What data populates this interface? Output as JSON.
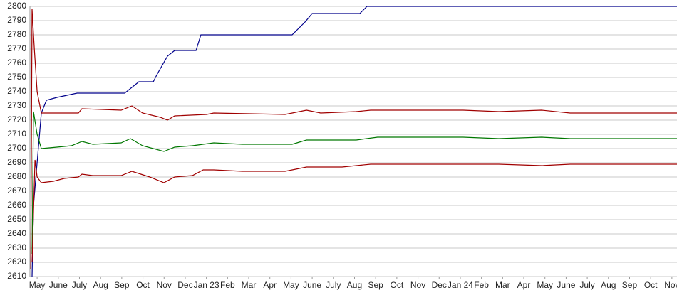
{
  "chart_data": {
    "type": "line",
    "xlim": [
      -0.34,
      30.24
    ],
    "ylim": [
      2610,
      2800
    ],
    "yticks": [
      2610,
      2620,
      2630,
      2640,
      2650,
      2660,
      2670,
      2680,
      2690,
      2700,
      2710,
      2720,
      2730,
      2740,
      2750,
      2760,
      2770,
      2780,
      2790,
      2800
    ],
    "xticks": [
      {
        "value": 0,
        "label": "May"
      },
      {
        "value": 1,
        "label": "June"
      },
      {
        "value": 2,
        "label": "July"
      },
      {
        "value": 3,
        "label": "Aug"
      },
      {
        "value": 4,
        "label": "Sep"
      },
      {
        "value": 5,
        "label": "Oct"
      },
      {
        "value": 6,
        "label": "Nov"
      },
      {
        "value": 7,
        "label": "Dec"
      },
      {
        "value": 8,
        "label": "Jan 23"
      },
      {
        "value": 9,
        "label": "Feb"
      },
      {
        "value": 10,
        "label": "Mar"
      },
      {
        "value": 11,
        "label": "Apr"
      },
      {
        "value": 12,
        "label": "May"
      },
      {
        "value": 13,
        "label": "June"
      },
      {
        "value": 14,
        "label": "July"
      },
      {
        "value": 15,
        "label": "Aug"
      },
      {
        "value": 16,
        "label": "Sep"
      },
      {
        "value": 17,
        "label": "Oct"
      },
      {
        "value": 18,
        "label": "Nov"
      },
      {
        "value": 19,
        "label": "Dec"
      },
      {
        "value": 20,
        "label": "Jan 24"
      },
      {
        "value": 21,
        "label": "Feb"
      },
      {
        "value": 22,
        "label": "Mar"
      },
      {
        "value": 23,
        "label": "Apr"
      },
      {
        "value": 24,
        "label": "May"
      },
      {
        "value": 25,
        "label": "June"
      },
      {
        "value": 26,
        "label": "July"
      },
      {
        "value": 27,
        "label": "Aug"
      },
      {
        "value": 28,
        "label": "Sep"
      },
      {
        "value": 29,
        "label": "Oct"
      },
      {
        "value": 30,
        "label": "Nov"
      }
    ],
    "grid": true,
    "series": [
      {
        "color": "#00008b",
        "x": [
          -0.24,
          -0.17,
          0.2,
          0.44,
          0.94,
          1.89,
          4.14,
          4.81,
          5.49,
          5.66,
          6.16,
          6.5,
          7.51,
          7.74,
          12.05,
          12.66,
          13.0,
          15.25,
          15.59,
          30.24
        ],
        "values": [
          2610,
          2660,
          2725,
          2734,
          2736,
          2739,
          2739,
          2747,
          2747,
          2752,
          2765,
          2769,
          2769,
          2780,
          2780,
          2789,
          2795,
          2795,
          2800,
          2800
        ]
      },
      {
        "color": "#a00000",
        "x": [
          -0.3,
          -0.24,
          -0.13,
          0,
          0.2,
          1.95,
          2.12,
          3.97,
          4.48,
          4.98,
          5.82,
          6.16,
          6.5,
          8.01,
          8.35,
          11.72,
          12.73,
          13.4,
          15.08,
          15.76,
          20.13,
          21.82,
          23.84,
          25.19,
          30.24
        ],
        "values": [
          2615,
          2798,
          2770,
          2740,
          2725,
          2725,
          2728,
          2727,
          2730,
          2725,
          2722,
          2720,
          2723,
          2724,
          2725,
          2724,
          2727,
          2725,
          2726,
          2727,
          2727,
          2726,
          2727,
          2725,
          2725
        ]
      },
      {
        "color": "#007700",
        "x": [
          -0.24,
          -0.17,
          0,
          0.2,
          0.94,
          1.62,
          2.12,
          2.63,
          3.97,
          4.41,
          4.98,
          5.99,
          6.5,
          7.34,
          8.35,
          9.7,
          12.05,
          12.73,
          15.08,
          16.09,
          20.13,
          21.82,
          23.84,
          25.19,
          30.24
        ],
        "values": [
          2626,
          2726,
          2710,
          2700,
          2701,
          2702,
          2705,
          2703,
          2704,
          2707,
          2702,
          2698,
          2701,
          2702,
          2704,
          2703,
          2703,
          2706,
          2706,
          2708,
          2708,
          2707,
          2708,
          2707,
          2707
        ]
      },
      {
        "color": "#a00000",
        "x": [
          -0.24,
          -0.1,
          0,
          0.2,
          0.77,
          1.28,
          1.95,
          2.12,
          2.63,
          3.97,
          4.48,
          5.32,
          5.99,
          6.5,
          7.34,
          7.85,
          8.35,
          9.7,
          11.72,
          12.73,
          14.41,
          15.76,
          21.82,
          23.84,
          25.19,
          30.24
        ],
        "values": [
          2620,
          2692,
          2680,
          2676,
          2677,
          2679,
          2680,
          2682,
          2681,
          2681,
          2684,
          2680,
          2676,
          2680,
          2681,
          2685,
          2685,
          2684,
          2684,
          2687,
          2687,
          2689,
          2689,
          2688,
          2689,
          2689
        ]
      }
    ]
  }
}
